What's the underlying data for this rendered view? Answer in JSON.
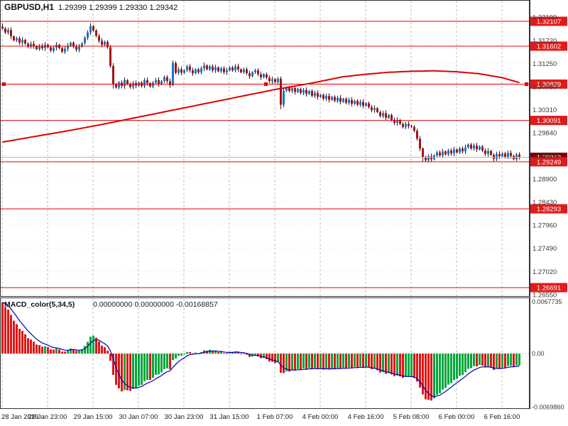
{
  "header": {
    "title": "GBPUSD,H1",
    "ohlc": "1.29399 1.29399 1.29330 1.29342"
  },
  "colors": {
    "bull": "#1874cd",
    "bear": "#a81010",
    "wick": "#222222",
    "ma": "#dd0000",
    "level": "#e60000",
    "level_tag": "#e01b1b",
    "current_tag": "#7d0000",
    "current_line": "#b8b8b8",
    "macd_up": "#00a63c",
    "macd_down": "#e01515",
    "signal": "#0000b8",
    "grid_v": "#bdbdbd",
    "grid_h": "#e3e3e3",
    "border": "#333333"
  },
  "chart_data": {
    "type": "candlestick",
    "title": "GBPUSD,H1",
    "symbol": "GBPUSD",
    "timeframe": "H1",
    "x_labels": [
      "28 Jan 2019",
      "28 Jan 23:00",
      "29 Jan 15:00",
      "30 Jan 07:00",
      "30 Jan 23:00",
      "31 Jan 15:00",
      "1 Feb 07:00",
      "4 Feb 00:00",
      "4 Feb 16:00",
      "5 Feb 08:00",
      "6 Feb 00:00",
      "6 Feb 16:00"
    ],
    "bars_per_gridline": 16,
    "first_open": 1.32,
    "closes": [
      1.3196,
      1.3188,
      1.3193,
      1.318,
      1.3172,
      1.3176,
      1.3167,
      1.3173,
      1.3165,
      1.3159,
      1.3165,
      1.316,
      1.3154,
      1.3161,
      1.3156,
      1.3163,
      1.3158,
      1.3151,
      1.3157,
      1.3163,
      1.3156,
      1.3149,
      1.3155,
      1.3161,
      1.3167,
      1.3159,
      1.3153,
      1.3159,
      1.3166,
      1.3177,
      1.3188,
      1.3201,
      1.3192,
      1.3181,
      1.3171,
      1.3163,
      1.3169,
      1.3158,
      1.312,
      1.3083,
      1.3076,
      1.3086,
      1.3079,
      1.3091,
      1.3083,
      1.3077,
      1.3085,
      1.308,
      1.3086,
      1.3079,
      1.3091,
      1.3085,
      1.3078,
      1.3086,
      1.3091,
      1.3083,
      1.3089,
      1.3097,
      1.3089,
      1.3081,
      1.3126,
      1.3106,
      1.3113,
      1.3106,
      1.3111,
      1.3119,
      1.3111,
      1.3105,
      1.3113,
      1.3107,
      1.3115,
      1.3121,
      1.3113,
      1.3119,
      1.3111,
      1.3117,
      1.3109,
      1.3115,
      1.3107,
      1.3111,
      1.3117,
      1.3111,
      1.3119,
      1.3113,
      1.3107,
      1.3113,
      1.3105,
      1.3099,
      1.3107,
      1.3111,
      1.3103,
      1.3097,
      1.3103,
      1.3096,
      1.3089,
      1.3093,
      1.3087,
      1.3094,
      1.3041,
      1.3069,
      1.3076,
      1.3069,
      1.3075,
      1.3067,
      1.3073,
      1.3065,
      1.3071,
      1.3063,
      1.3069,
      1.3059,
      1.3065,
      1.3057,
      1.3061,
      1.3053,
      1.3059,
      1.3051,
      1.3057,
      1.3049,
      1.3055,
      1.3047,
      1.3053,
      1.3045,
      1.3051,
      1.3043,
      1.3049,
      1.3041,
      1.3047,
      1.3039,
      1.3044,
      1.3036,
      1.303,
      1.3034,
      1.3026,
      1.3018,
      1.3024,
      1.3014,
      1.302,
      1.301,
      1.3004,
      1.301,
      1.3002,
      1.2996,
      1.3002,
      1.2998,
      1.2996,
      1.2988,
      1.2972,
      1.2952,
      1.2934,
      1.2928,
      1.2936,
      1.293,
      1.2938,
      1.2944,
      1.2938,
      1.2946,
      1.294,
      1.2948,
      1.2942,
      1.295,
      1.2944,
      1.2952,
      1.2946,
      1.2954,
      1.296,
      1.2952,
      1.2958,
      1.295,
      1.2956,
      1.2948,
      1.2941,
      1.2947,
      1.2939,
      1.2931,
      1.2941,
      1.2936,
      1.2942,
      1.2935,
      1.2943,
      1.2937,
      1.293,
      1.294,
      1.29342
    ],
    "spikes": {
      "0": {
        "h": 1.3206
      },
      "31": {
        "h": 1.3207
      },
      "39": {
        "l": 1.3074
      },
      "60": {
        "h": 1.3131
      },
      "98": {
        "l": 1.3032
      },
      "148": {
        "l": 1.2926
      },
      "173": {
        "l": 1.2925
      }
    },
    "ma_anchors": [
      [
        0,
        1.2965
      ],
      [
        12,
        1.2977
      ],
      [
        24,
        1.2989
      ],
      [
        36,
        1.3002
      ],
      [
        48,
        1.3016
      ],
      [
        60,
        1.303
      ],
      [
        72,
        1.3044
      ],
      [
        84,
        1.3058
      ],
      [
        96,
        1.3072
      ],
      [
        108,
        1.3084
      ],
      [
        120,
        1.3098
      ],
      [
        128,
        1.3103
      ],
      [
        136,
        1.3107
      ],
      [
        144,
        1.3109
      ],
      [
        152,
        1.311
      ],
      [
        160,
        1.3108
      ],
      [
        168,
        1.3104
      ],
      [
        176,
        1.3096
      ],
      [
        182,
        1.3086
      ]
    ],
    "price_axis": {
      "visible_max": 1.3254,
      "visible_min": 1.2652,
      "ticks": [
        "1.32190",
        "1.31720",
        "1.31250",
        "1.30780",
        "1.30310",
        "1.29840",
        "1.29370",
        "1.28900",
        "1.28430",
        "1.27960",
        "1.27490",
        "1.27020",
        "1.26550"
      ]
    },
    "levels": [
      "1.32107",
      "1.31602",
      "1.30829",
      "1.30091",
      "1.29249",
      "1.28293",
      "1.26691"
    ],
    "selected_level_index": 2,
    "current_price": "1.29342",
    "macd": {
      "label": "MACD_color(5,34,5)",
      "values_text": "0.00000000 0.00000000 -0.00168857",
      "fast": 5,
      "slow": 34,
      "signal": 5,
      "seed_offset": 0.0067,
      "last_value": -0.00168857,
      "axis_labels": [
        "0.0067735",
        "0.00",
        "-0.0069860"
      ]
    }
  }
}
